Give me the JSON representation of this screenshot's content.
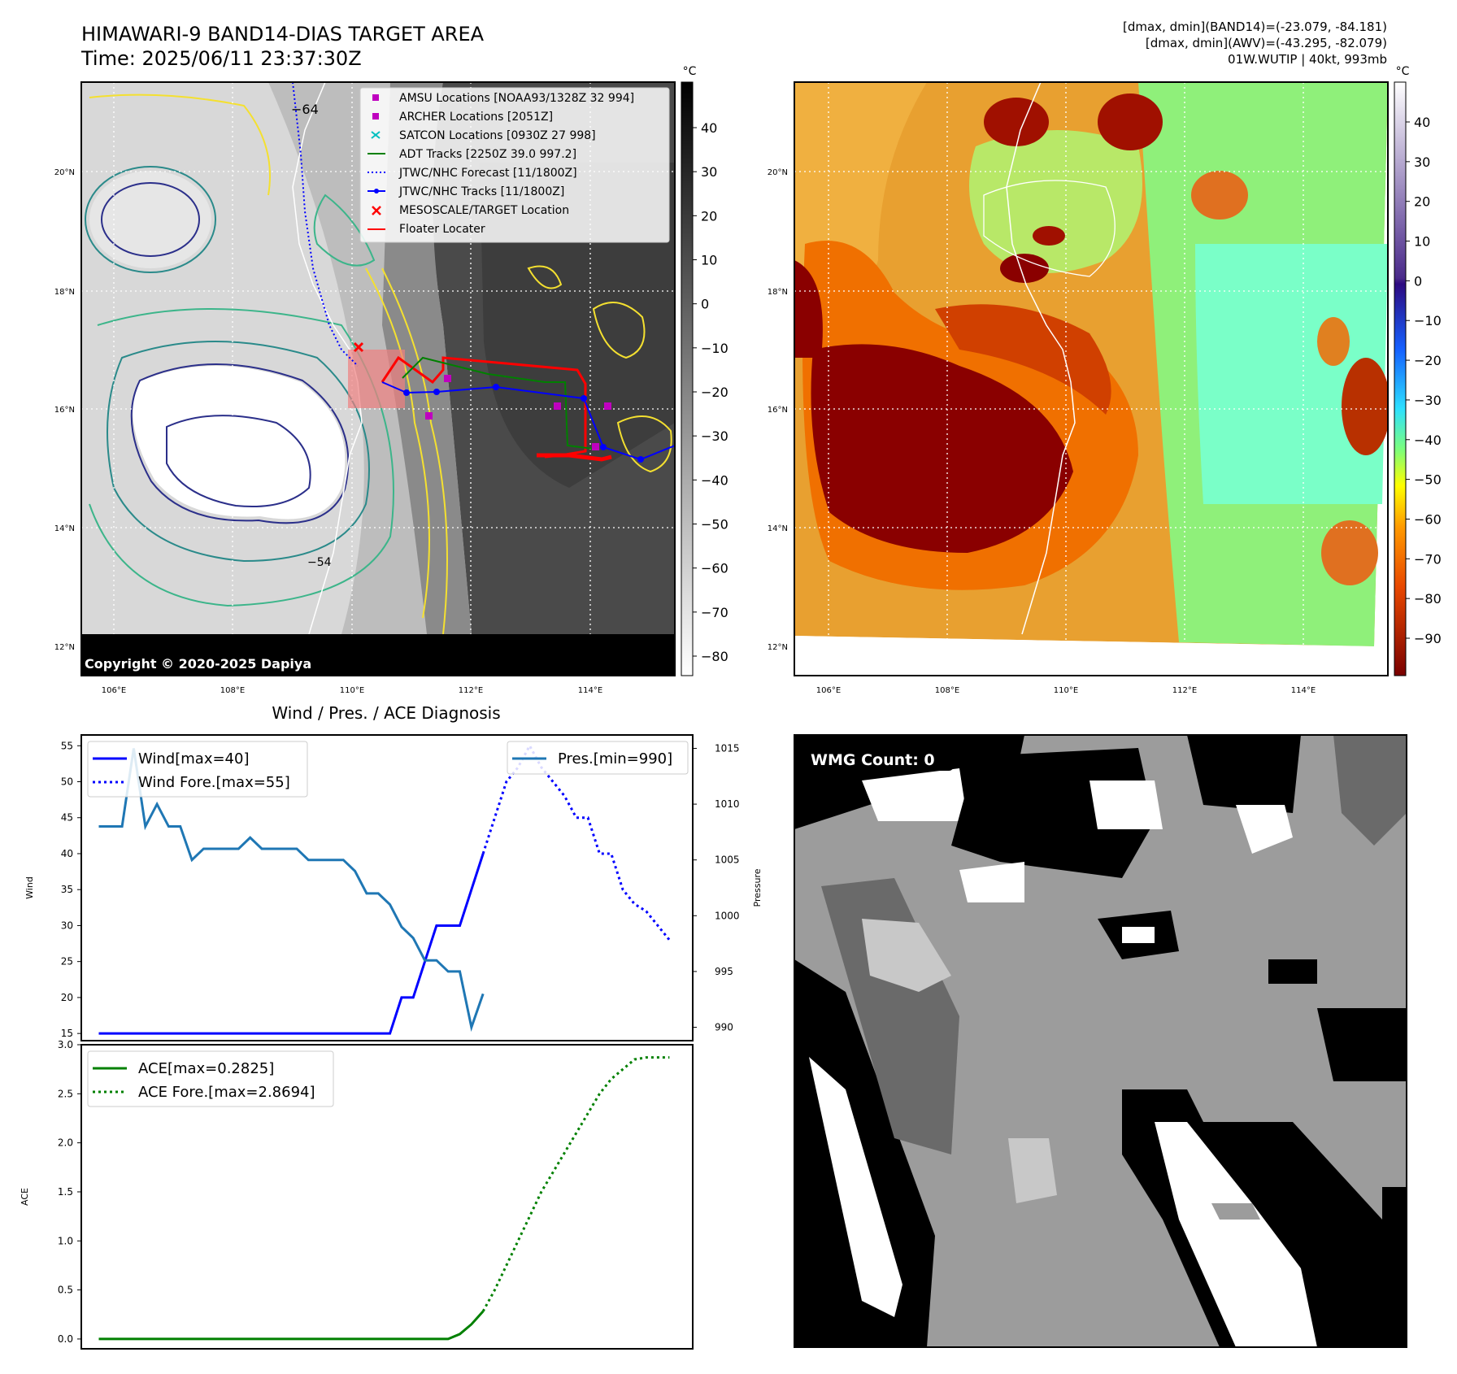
{
  "header": {
    "title_line1": "HIMAWARI-9 BAND14-DIAS TARGET AREA",
    "title_line2": "Time: 2025/06/11 23:37:30Z",
    "info_line1": "[dmax, dmin](BAND14)=(-23.079, -84.181)",
    "info_line2": "[dmax, dmin](AWV)=(-43.295, -82.079)",
    "info_line3": "01W.WUTIP | 40kt, 993mb"
  },
  "colors": {
    "wind": "#0000ff",
    "pressure": "#1f77b4",
    "ace": "#008000",
    "track_jtwc": "#0000ff",
    "track_adt": "#008000",
    "floater": "#ff0000",
    "amsu": "#bf00bf",
    "satcon": "#00bfbf"
  },
  "map_left": {
    "copyright": "Copyright © 2020-2025 Dapiya",
    "colorbar_unit": "°C",
    "colorbar_ticks": [
      "40",
      "30",
      "20",
      "10",
      "0",
      "−10",
      "−20",
      "−30",
      "−40",
      "−50",
      "−60",
      "−70",
      "−80"
    ],
    "lat_labels": [
      "20°N",
      "18°N",
      "16°N",
      "14°N",
      "12°N"
    ],
    "lon_labels": [
      "106°E",
      "108°E",
      "110°E",
      "112°E",
      "114°E"
    ],
    "contour_labels": [
      "−64",
      "−54"
    ],
    "legend": [
      {
        "label": "AMSU Locations [NOAA93/1328Z 32 994]",
        "icon": "square-marker"
      },
      {
        "label": "ARCHER Locations [2051Z]",
        "icon": "square-marker"
      },
      {
        "label": "SATCON Locations [0930Z 27 998]",
        "icon": "x-marker"
      },
      {
        "label": "ADT Tracks [2250Z 39.0 997.2]",
        "icon": "line"
      },
      {
        "label": "JTWC/NHC Forecast [11/1800Z]",
        "icon": "dotted-line"
      },
      {
        "label": "JTWC/NHC Tracks [11/1800Z]",
        "icon": "dot-line"
      },
      {
        "label": "MESOSCALE/TARGET Location",
        "icon": "x-marker"
      },
      {
        "label": "Floater Locater",
        "icon": "line"
      }
    ]
  },
  "map_right": {
    "colorbar_unit": "°C",
    "colorbar_ticks": [
      "40",
      "30",
      "20",
      "10",
      "0",
      "−10",
      "−20",
      "−30",
      "−40",
      "−50",
      "−60",
      "−70",
      "−80",
      "−90"
    ],
    "lat_labels": [
      "20°N",
      "18°N",
      "16°N",
      "14°N",
      "12°N"
    ],
    "lon_labels": [
      "106°E",
      "108°E",
      "110°E",
      "112°E",
      "114°E"
    ]
  },
  "wmg_panel": {
    "label": "WMG Count: 0"
  },
  "chart_data": [
    {
      "type": "line",
      "title": "Wind / Pres. / ACE Diagnosis",
      "ylabel": "Wind",
      "ylabel_right": "Pressure",
      "ylim": [
        14,
        56.5
      ],
      "ylim_right": [
        988.8,
        1016.2
      ],
      "yticks": [
        15,
        20,
        25,
        30,
        35,
        40,
        45,
        50,
        55
      ],
      "yticks_right": [
        990,
        995,
        1000,
        1005,
        1010,
        1015
      ],
      "xlim": [
        -1.5,
        51
      ],
      "series": [
        {
          "name": "Wind[max=40]",
          "axis": "left",
          "style": "solid",
          "x": [
            0,
            1,
            2,
            3,
            4,
            5,
            6,
            7,
            8,
            9,
            10,
            11,
            12,
            13,
            14,
            15,
            16,
            17,
            18,
            19,
            20,
            21,
            22,
            23,
            24,
            25,
            26,
            27,
            28,
            29,
            30,
            31,
            32,
            33
          ],
          "values": [
            15,
            15,
            15,
            15,
            15,
            15,
            15,
            15,
            15,
            15,
            15,
            15,
            15,
            15,
            15,
            15,
            15,
            15,
            15,
            15,
            15,
            15,
            15,
            15,
            15,
            15,
            20,
            20,
            25,
            30,
            30,
            30,
            35,
            40
          ]
        },
        {
          "name": "Wind Fore.[max=55]",
          "axis": "left",
          "style": "dotted",
          "x": [
            33,
            34,
            35,
            36,
            37,
            38,
            39,
            40,
            41,
            42,
            43,
            44,
            45,
            46,
            47,
            48,
            49
          ],
          "values": [
            40,
            45,
            50,
            52,
            55,
            52,
            50,
            48,
            45,
            45,
            40,
            40,
            35,
            33,
            32,
            30,
            28
          ]
        },
        {
          "name": "Pres.[min=990]",
          "axis": "right",
          "style": "solid",
          "x": [
            0,
            1,
            2,
            3,
            4,
            5,
            6,
            7,
            8,
            9,
            10,
            11,
            12,
            13,
            14,
            15,
            16,
            17,
            18,
            19,
            20,
            21,
            22,
            23,
            24,
            25,
            26,
            27,
            28,
            29,
            30,
            31,
            32,
            33
          ],
          "values": [
            1008,
            1008,
            1008,
            1015,
            1008,
            1010,
            1008,
            1008,
            1005,
            1006,
            1006,
            1006,
            1006,
            1007,
            1006,
            1006,
            1006,
            1006,
            1005,
            1005,
            1005,
            1005,
            1004,
            1002,
            1002,
            1001,
            999,
            998,
            996,
            996,
            995,
            995,
            990,
            993
          ]
        }
      ]
    },
    {
      "type": "line",
      "ylabel": "ACE",
      "ylim": [
        -0.1,
        3.0
      ],
      "yticks": [
        0.0,
        0.5,
        1.0,
        1.5,
        2.0,
        2.5,
        3.0
      ],
      "xlim": [
        -1.5,
        51
      ],
      "series": [
        {
          "name": "ACE[max=0.2825]",
          "style": "solid",
          "x": [
            0,
            30,
            31,
            32,
            33
          ],
          "values": [
            0,
            0,
            0.05,
            0.15,
            0.2825
          ]
        },
        {
          "name": "ACE Fore.[max=2.8694]",
          "style": "dotted",
          "x": [
            33,
            34,
            35,
            36,
            37,
            38,
            39,
            40,
            41,
            42,
            43,
            44,
            45,
            46,
            47,
            48,
            49
          ],
          "values": [
            0.2825,
            0.5,
            0.75,
            1.0,
            1.25,
            1.5,
            1.7,
            1.9,
            2.1,
            2.3,
            2.5,
            2.65,
            2.75,
            2.85,
            2.87,
            2.87,
            2.87
          ]
        }
      ]
    }
  ]
}
